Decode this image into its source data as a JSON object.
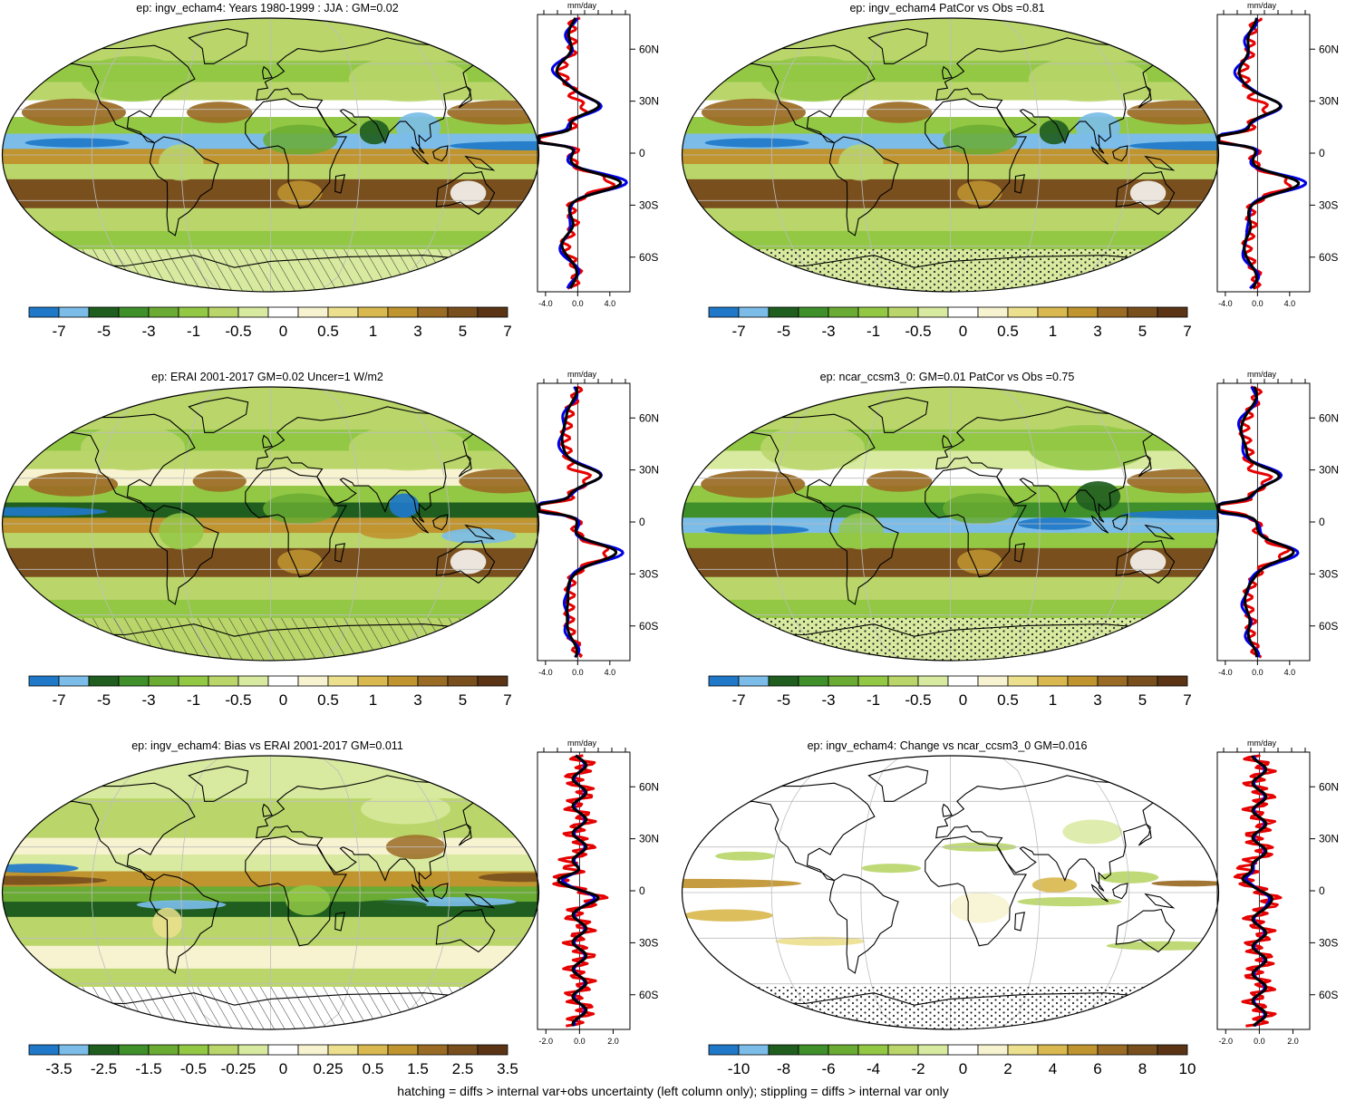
{
  "footer": "hatching = diffs > internal var+obs uncertainty (left column only); stippling = diffs > internal var only",
  "colors": {
    "wet_to_dry": [
      "#1f78c8",
      "#7bbde8",
      "#1f5e1f",
      "#3f8f2a",
      "#6aab33",
      "#93c845",
      "#bad66b",
      "#d8ea9f",
      "#ffffff",
      "#f7f2cf",
      "#ece08f",
      "#d9b94f",
      "#c09530",
      "#9a6b24",
      "#7a4f1e",
      "#5a3414"
    ],
    "model": "#000000",
    "obs1": "#e60000",
    "obs2": "#0000e6"
  },
  "chart_data": [
    {
      "type": "heatmap",
      "title": "ep: ingv_echam4: Years 1980-1999 : JJA : GM=0.02",
      "colorbar_labels": [
        "-7",
        "-5",
        "-3",
        "-1",
        "-0.5",
        "0",
        "0.5",
        "1",
        "3",
        "5",
        "7"
      ],
      "zonal": {
        "unit": "mm/day",
        "xticks": [
          "-4.0",
          "0.0",
          "4.0"
        ],
        "yticks": [
          "60N",
          "30N",
          "0",
          "30S",
          "60S"
        ],
        "xlim": [
          -5,
          6.5
        ],
        "scale": "full"
      },
      "overlay": "hatch"
    },
    {
      "type": "heatmap",
      "title": "ep: ingv_echam4 PatCor vs Obs =0.81",
      "colorbar_labels": [
        "-7",
        "-5",
        "-3",
        "-1",
        "-0.5",
        "0",
        "0.5",
        "1",
        "3",
        "5",
        "7"
      ],
      "zonal": {
        "unit": "mm/day",
        "xticks": [
          "-4.0",
          "0.0",
          "4.0"
        ],
        "yticks": [
          "60N",
          "30N",
          "0",
          "30S",
          "60S"
        ],
        "xlim": [
          -5,
          6.5
        ],
        "scale": "full"
      },
      "overlay": "stipple"
    },
    {
      "type": "heatmap",
      "title": "ep: ERAI 2001-2017 GM=0.02 Uncer=1 W/m2",
      "colorbar_labels": [
        "-7",
        "-5",
        "-3",
        "-1",
        "-0.5",
        "0",
        "0.5",
        "1",
        "3",
        "5",
        "7"
      ],
      "zonal": {
        "unit": "mm/day",
        "xticks": [
          "-4.0",
          "0.0",
          "4.0"
        ],
        "yticks": [
          "60N",
          "30N",
          "0",
          "30S",
          "60S"
        ],
        "xlim": [
          -5,
          6.5
        ],
        "scale": "full"
      },
      "overlay": "hatch"
    },
    {
      "type": "heatmap",
      "title": "ep: ncar_ccsm3_0: GM=0.01 PatCor vs Obs =0.75",
      "colorbar_labels": [
        "-7",
        "-5",
        "-3",
        "-1",
        "-0.5",
        "0",
        "0.5",
        "1",
        "3",
        "5",
        "7"
      ],
      "zonal": {
        "unit": "mm/day",
        "xticks": [
          "-4.0",
          "0.0",
          "4.0"
        ],
        "yticks": [
          "60N",
          "30N",
          "0",
          "30S",
          "60S"
        ],
        "xlim": [
          -5,
          6.5
        ],
        "scale": "full"
      },
      "overlay": "stipple"
    },
    {
      "type": "heatmap",
      "title": "ep: ingv_echam4: Bias vs ERAI 2001-2017 GM=0.011",
      "colorbar_labels": [
        "-3.5",
        "-2.5",
        "-1.5",
        "-0.5",
        "-0.25",
        "0",
        "0.25",
        "0.5",
        "1.5",
        "2.5",
        "3.5"
      ],
      "zonal": {
        "unit": "mm/day",
        "xticks": [
          "-2.0",
          "0.0",
          "2.0"
        ],
        "yticks": [
          "60N",
          "30N",
          "0",
          "30S",
          "60S"
        ],
        "xlim": [
          -2.5,
          3.0
        ],
        "scale": "bias"
      },
      "overlay": "hatch"
    },
    {
      "type": "heatmap",
      "title": "ep: ingv_echam4: Change vs ncar_ccsm3_0 GM=0.016",
      "colorbar_labels": [
        "-10",
        "-8",
        "-6",
        "-4",
        "-2",
        "0",
        "2",
        "4",
        "6",
        "8",
        "10"
      ],
      "zonal": {
        "unit": "mm/day",
        "xticks": [
          "-2.0",
          "0.0",
          "2.0"
        ],
        "yticks": [
          "60N",
          "30N",
          "0",
          "30S",
          "60S"
        ],
        "xlim": [
          -2.5,
          3.0
        ],
        "scale": "bias"
      },
      "overlay": "stipple"
    }
  ]
}
